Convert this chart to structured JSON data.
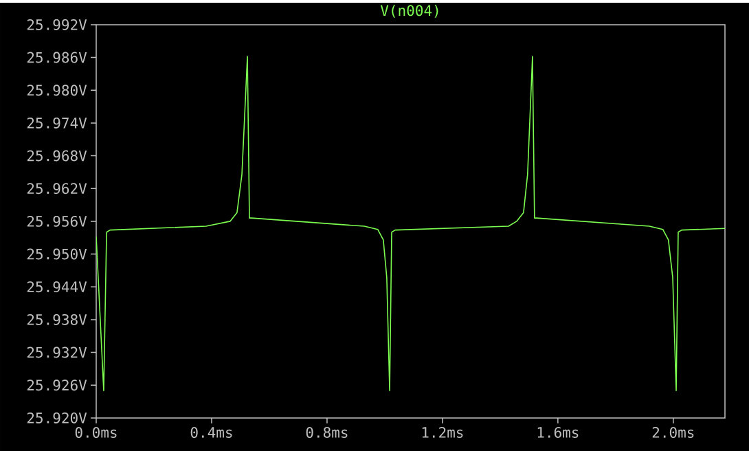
{
  "chart_data": {
    "type": "line",
    "title": "V(n004)",
    "x": [
      0.0,
      0.026,
      0.036,
      0.048,
      0.381,
      0.464,
      0.488,
      0.505,
      0.524,
      0.531,
      0.538,
      0.929,
      0.976,
      0.995,
      1.007,
      1.017,
      1.024,
      1.036,
      1.429,
      1.457,
      1.481,
      1.495,
      1.512,
      1.519,
      1.526,
      1.917,
      1.964,
      1.983,
      1.998,
      2.01,
      2.017,
      2.029,
      2.179
    ],
    "series": [
      {
        "name": null,
        "color": "#7dfc50",
        "values": [
          25.9532,
          25.925,
          25.954,
          25.9544,
          25.9551,
          25.956,
          25.9576,
          25.9646,
          25.9862,
          25.9566,
          25.9566,
          25.9551,
          25.9545,
          25.9526,
          25.9457,
          25.925,
          25.954,
          25.9544,
          25.9551,
          25.956,
          25.9576,
          25.9646,
          25.9862,
          25.9566,
          25.9566,
          25.9551,
          25.9545,
          25.9526,
          25.9457,
          25.925,
          25.954,
          25.9544,
          25.9547
        ]
      }
    ],
    "xlim": [
      0,
      2.179
    ],
    "ylim": [
      25.92,
      25.992
    ],
    "xticks": [
      {
        "value": 0.0,
        "label": "0.0ms"
      },
      {
        "value": 0.4,
        "label": "0.4ms"
      },
      {
        "value": 0.8,
        "label": "0.8ms"
      },
      {
        "value": 1.2,
        "label": "1.2ms"
      },
      {
        "value": 1.6,
        "label": "1.6ms"
      },
      {
        "value": 2.0,
        "label": "2.0ms"
      }
    ],
    "yticks": [
      {
        "value": 25.92,
        "label": "25.920V"
      },
      {
        "value": 25.926,
        "label": "25.926V"
      },
      {
        "value": 25.932,
        "label": "25.932V"
      },
      {
        "value": 25.938,
        "label": "25.938V"
      },
      {
        "value": 25.944,
        "label": "25.944V"
      },
      {
        "value": 25.95,
        "label": "25.950V"
      },
      {
        "value": 25.956,
        "label": "25.956V"
      },
      {
        "value": 25.962,
        "label": "25.962V"
      },
      {
        "value": 25.968,
        "label": "25.968V"
      },
      {
        "value": 25.974,
        "label": "25.974V"
      },
      {
        "value": 25.98,
        "label": "25.980V"
      },
      {
        "value": 25.986,
        "label": "25.986V"
      },
      {
        "value": 25.992,
        "label": "25.992V"
      }
    ],
    "grid": false
  }
}
